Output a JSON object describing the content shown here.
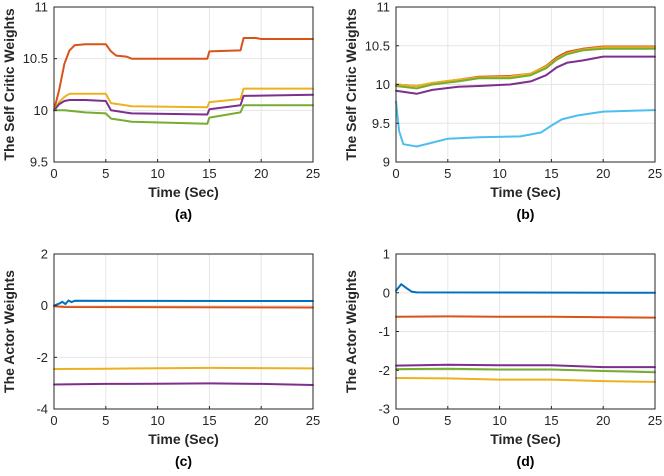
{
  "palette": {
    "blue": "#0072bd",
    "red": "#d95319",
    "yellow": "#edb120",
    "purple": "#7e2f8e",
    "green": "#77ac30",
    "cyan": "#4dbeee",
    "axis": "#262626",
    "grid": "#e6e6e6"
  },
  "chart_data": [
    {
      "id": "a",
      "type": "line",
      "caption": "(a)",
      "xlabel": "Time (Sec)",
      "ylabel": "The Self Critic Weights",
      "xlim": [
        0,
        25
      ],
      "ylim": [
        9.5,
        11
      ],
      "xticks": [
        0,
        5,
        10,
        15,
        20,
        25
      ],
      "yticks": [
        9.5,
        10,
        10.5,
        11
      ],
      "ytick_labels": [
        "9.5",
        "10",
        "10.5",
        "11"
      ],
      "grid": true,
      "series": [
        {
          "color": "red",
          "points": [
            [
              0,
              10.0
            ],
            [
              0.5,
              10.2
            ],
            [
              1,
              10.45
            ],
            [
              1.5,
              10.58
            ],
            [
              2,
              10.63
            ],
            [
              3,
              10.64
            ],
            [
              5,
              10.64
            ],
            [
              5.5,
              10.57
            ],
            [
              6,
              10.53
            ],
            [
              7,
              10.52
            ],
            [
              7.5,
              10.5
            ],
            [
              14.8,
              10.5
            ],
            [
              15,
              10.57
            ],
            [
              18,
              10.58
            ],
            [
              18.3,
              10.7
            ],
            [
              19.5,
              10.7
            ],
            [
              20,
              10.69
            ],
            [
              25,
              10.69
            ]
          ]
        },
        {
          "color": "yellow",
          "points": [
            [
              0,
              10.0
            ],
            [
              0.5,
              10.08
            ],
            [
              1,
              10.13
            ],
            [
              1.5,
              10.16
            ],
            [
              5,
              10.16
            ],
            [
              5.5,
              10.07
            ],
            [
              7.5,
              10.04
            ],
            [
              14.8,
              10.03
            ],
            [
              15,
              10.08
            ],
            [
              18,
              10.11
            ],
            [
              18.3,
              10.21
            ],
            [
              25,
              10.21
            ]
          ]
        },
        {
          "color": "purple",
          "points": [
            [
              0,
              10.0
            ],
            [
              0.5,
              10.06
            ],
            [
              1,
              10.09
            ],
            [
              1.5,
              10.1
            ],
            [
              3,
              10.1
            ],
            [
              5,
              10.09
            ],
            [
              5.5,
              10.0
            ],
            [
              7.5,
              9.97
            ],
            [
              14.8,
              9.96
            ],
            [
              15,
              10.01
            ],
            [
              18,
              10.05
            ],
            [
              18.3,
              10.14
            ],
            [
              25,
              10.15
            ]
          ]
        },
        {
          "color": "green",
          "points": [
            [
              0,
              10.0
            ],
            [
              1,
              10.0
            ],
            [
              3,
              9.98
            ],
            [
              5,
              9.97
            ],
            [
              5.5,
              9.92
            ],
            [
              7.5,
              9.89
            ],
            [
              14.8,
              9.87
            ],
            [
              15,
              9.93
            ],
            [
              18,
              9.98
            ],
            [
              18.3,
              10.05
            ],
            [
              25,
              10.05
            ]
          ]
        }
      ]
    },
    {
      "id": "b",
      "type": "line",
      "caption": "(b)",
      "xlabel": "Time (Sec)",
      "ylabel": "The Self Critic Weights",
      "xlim": [
        0,
        25
      ],
      "ylim": [
        9,
        11
      ],
      "xticks": [
        0,
        5,
        10,
        15,
        20,
        25
      ],
      "yticks": [
        9,
        9.5,
        10,
        10.5,
        11
      ],
      "ytick_labels": [
        "9",
        "9.5",
        "10",
        "10.5",
        "11"
      ],
      "grid": true,
      "series": [
        {
          "color": "red",
          "points": [
            [
              0,
              10.0
            ],
            [
              2,
              9.98
            ],
            [
              3.5,
              10.02
            ],
            [
              6,
              10.06
            ],
            [
              8,
              10.1
            ],
            [
              11,
              10.11
            ],
            [
              13,
              10.14
            ],
            [
              14.5,
              10.24
            ],
            [
              15.5,
              10.35
            ],
            [
              16.5,
              10.42
            ],
            [
              18,
              10.46
            ],
            [
              20,
              10.49
            ],
            [
              25,
              10.49
            ]
          ]
        },
        {
          "color": "yellow",
          "points": [
            [
              0,
              10.0
            ],
            [
              2,
              9.98
            ],
            [
              3.5,
              10.02
            ],
            [
              6,
              10.06
            ],
            [
              8,
              10.09
            ],
            [
              11,
              10.1
            ],
            [
              13,
              10.14
            ],
            [
              14.5,
              10.23
            ],
            [
              15.5,
              10.33
            ],
            [
              16.5,
              10.4
            ],
            [
              18,
              10.45
            ],
            [
              20,
              10.48
            ],
            [
              25,
              10.48
            ]
          ]
        },
        {
          "color": "green",
          "points": [
            [
              0,
              9.98
            ],
            [
              2,
              9.95
            ],
            [
              3.5,
              10.0
            ],
            [
              6,
              10.04
            ],
            [
              8,
              10.08
            ],
            [
              11,
              10.08
            ],
            [
              13,
              10.12
            ],
            [
              14.5,
              10.21
            ],
            [
              15.5,
              10.32
            ],
            [
              16.5,
              10.39
            ],
            [
              18,
              10.44
            ],
            [
              20,
              10.46
            ],
            [
              25,
              10.46
            ]
          ]
        },
        {
          "color": "purple",
          "points": [
            [
              0,
              9.92
            ],
            [
              2,
              9.88
            ],
            [
              3.5,
              9.93
            ],
            [
              6,
              9.97
            ],
            [
              8,
              9.98
            ],
            [
              11,
              10.0
            ],
            [
              13,
              10.04
            ],
            [
              14.5,
              10.12
            ],
            [
              15.5,
              10.22
            ],
            [
              16.5,
              10.28
            ],
            [
              18,
              10.31
            ],
            [
              20,
              10.36
            ],
            [
              25,
              10.36
            ]
          ]
        },
        {
          "color": "cyan",
          "points": [
            [
              0,
              9.78
            ],
            [
              0.3,
              9.4
            ],
            [
              0.7,
              9.23
            ],
            [
              2,
              9.2
            ],
            [
              3.5,
              9.25
            ],
            [
              5,
              9.3
            ],
            [
              8,
              9.32
            ],
            [
              12,
              9.33
            ],
            [
              14,
              9.38
            ],
            [
              15,
              9.47
            ],
            [
              16,
              9.55
            ],
            [
              17.5,
              9.6
            ],
            [
              20,
              9.65
            ],
            [
              25,
              9.67
            ]
          ]
        }
      ]
    },
    {
      "id": "c",
      "type": "line",
      "caption": "(c)",
      "xlabel": "Time (Sec)",
      "ylabel": "The Actor Weights",
      "xlim": [
        0,
        25
      ],
      "ylim": [
        -4,
        2
      ],
      "xticks": [
        0,
        5,
        10,
        15,
        20,
        25
      ],
      "yticks": [
        -4,
        -2,
        0,
        2
      ],
      "ytick_labels": [
        "-4",
        "-2",
        "0",
        "2"
      ],
      "grid": true,
      "series": [
        {
          "color": "blue",
          "points": [
            [
              0,
              0.0
            ],
            [
              0.5,
              0.08
            ],
            [
              0.8,
              0.15
            ],
            [
              1.1,
              0.06
            ],
            [
              1.4,
              0.2
            ],
            [
              1.7,
              0.14
            ],
            [
              2,
              0.19
            ],
            [
              25,
              0.18
            ]
          ]
        },
        {
          "color": "red",
          "points": [
            [
              0,
              -0.02
            ],
            [
              1,
              -0.05
            ],
            [
              25,
              -0.07
            ]
          ]
        },
        {
          "color": "yellow",
          "points": [
            [
              0,
              -2.45
            ],
            [
              5,
              -2.44
            ],
            [
              10,
              -2.42
            ],
            [
              15,
              -2.41
            ],
            [
              25,
              -2.43
            ]
          ]
        },
        {
          "color": "purple",
          "points": [
            [
              0,
              -3.05
            ],
            [
              5,
              -3.03
            ],
            [
              10,
              -3.02
            ],
            [
              15,
              -3.01
            ],
            [
              20,
              -3.03
            ],
            [
              25,
              -3.07
            ]
          ]
        }
      ]
    },
    {
      "id": "d",
      "type": "line",
      "caption": "(d)",
      "xlabel": "Time (Sec)",
      "ylabel": "The Actor Weights",
      "xlim": [
        0,
        25
      ],
      "ylim": [
        -3,
        1
      ],
      "xticks": [
        0,
        5,
        10,
        15,
        20,
        25
      ],
      "yticks": [
        -3,
        -2,
        -1,
        0,
        1
      ],
      "ytick_labels": [
        "-3",
        "-2",
        "-1",
        "0",
        "1"
      ],
      "grid": true,
      "series": [
        {
          "color": "blue",
          "points": [
            [
              0,
              0.05
            ],
            [
              0.5,
              0.22
            ],
            [
              1,
              0.12
            ],
            [
              1.5,
              0.03
            ],
            [
              2,
              0.01
            ],
            [
              25,
              0.0
            ]
          ]
        },
        {
          "color": "red",
          "points": [
            [
              0,
              -0.62
            ],
            [
              5,
              -0.61
            ],
            [
              10,
              -0.62
            ],
            [
              15,
              -0.62
            ],
            [
              25,
              -0.64
            ]
          ]
        },
        {
          "color": "purple",
          "points": [
            [
              0,
              -1.88
            ],
            [
              5,
              -1.86
            ],
            [
              10,
              -1.87
            ],
            [
              15,
              -1.87
            ],
            [
              20,
              -1.92
            ],
            [
              25,
              -1.92
            ]
          ]
        },
        {
          "color": "green",
          "points": [
            [
              0,
              -1.97
            ],
            [
              5,
              -1.96
            ],
            [
              10,
              -1.98
            ],
            [
              15,
              -1.98
            ],
            [
              20,
              -2.02
            ],
            [
              25,
              -2.05
            ]
          ]
        },
        {
          "color": "yellow",
          "points": [
            [
              0,
              -2.2
            ],
            [
              5,
              -2.21
            ],
            [
              10,
              -2.24
            ],
            [
              15,
              -2.24
            ],
            [
              20,
              -2.28
            ],
            [
              25,
              -2.3
            ]
          ]
        }
      ]
    }
  ]
}
